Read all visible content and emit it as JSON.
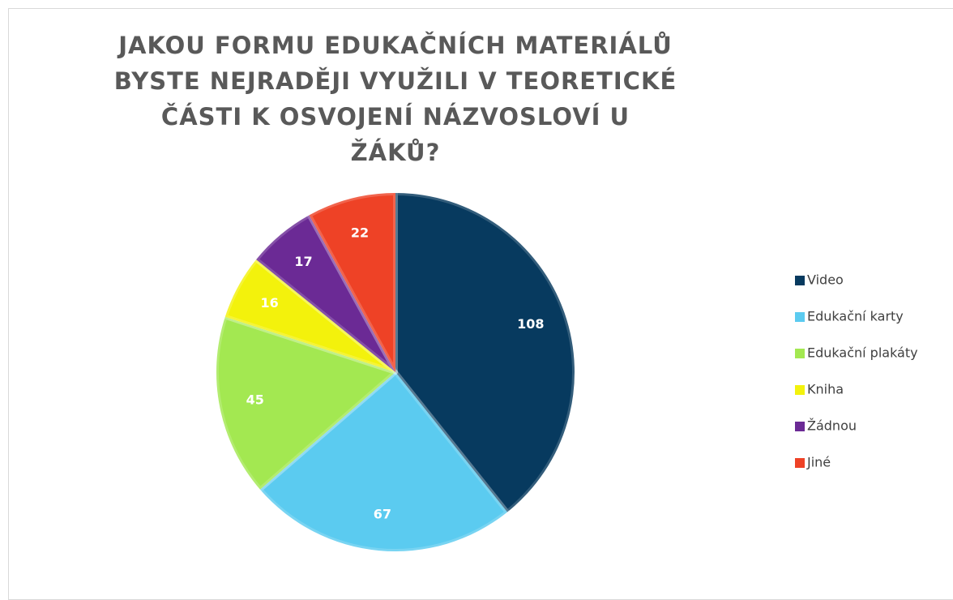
{
  "chart_data": {
    "type": "pie",
    "title": "JAKOU FORMU EDUKAČNÍCH MATERIÁLŮ BYSTE NEJRADĚJI VYUŽILI V TEORETICKÉ ČÁSTI K OSVOJENÍ NÁZVOSLOVÍ U ŽÁKŮ?",
    "categories": [
      "Video",
      "Edukační karty",
      "Edukační plakáty",
      "Kniha",
      "Žádnou",
      "Jiné"
    ],
    "values": [
      108,
      67,
      45,
      16,
      17,
      22
    ],
    "colors": [
      "#073a5f",
      "#5bcbf0",
      "#a3e851",
      "#f3f20c",
      "#6b2a95",
      "#ee4226"
    ],
    "legend": "right"
  }
}
